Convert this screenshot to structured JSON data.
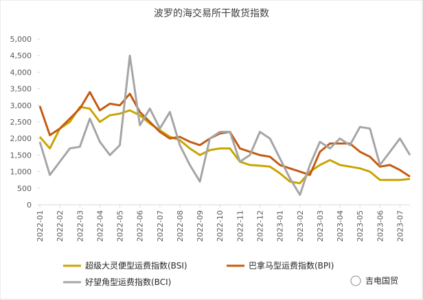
{
  "chart_data": {
    "type": "line",
    "title": "波罗的海交易所干散货指数",
    "categories": [
      "2022-01",
      null,
      "2022-02",
      null,
      "2022-03",
      null,
      "2022-04",
      null,
      "2022-05",
      null,
      "2022-06",
      null,
      "2022-07",
      null,
      "2022-08",
      null,
      "2022-09",
      null,
      "2022-10",
      null,
      "2022-11",
      null,
      "2022-12",
      null,
      "2023-01",
      null,
      "2023-02",
      null,
      "2023-03",
      null,
      "2023-04",
      null,
      "2023-05",
      null,
      "2023-06",
      null,
      "2023-07",
      null
    ],
    "series": [
      {
        "name": "超级大灵便型运费指数(BSI)",
        "color": "#c9a400",
        "values": [
          2050,
          1700,
          2300,
          2500,
          2950,
          2900,
          2500,
          2700,
          2750,
          2850,
          2700,
          2450,
          2250,
          2050,
          1950,
          1700,
          1500,
          1650,
          1700,
          1700,
          1300,
          1200,
          1180,
          1150,
          950,
          700,
          650,
          1000,
          1200,
          1350,
          1200,
          1150,
          1100,
          1000,
          750,
          750,
          750,
          780
        ]
      },
      {
        "name": "巴拿马型运费指数(BPI)",
        "color": "#c55a11",
        "values": [
          2980,
          2100,
          2300,
          2600,
          2900,
          3400,
          2850,
          3050,
          3000,
          3350,
          2800,
          2500,
          2200,
          2000,
          2050,
          1900,
          1800,
          2000,
          2150,
          2200,
          1700,
          1600,
          1500,
          1450,
          1200,
          1100,
          1000,
          900,
          1600,
          1850,
          1850,
          1850,
          1600,
          1450,
          1150,
          1200,
          1050,
          850
        ]
      },
      {
        "name": "好望角型运费指数(BCI)",
        "color": "#a5a5a5",
        "values": [
          1900,
          900,
          1300,
          1700,
          1750,
          2600,
          1900,
          1500,
          1800,
          4500,
          2400,
          2900,
          2300,
          2800,
          1800,
          1200,
          700,
          2000,
          2200,
          2200,
          1300,
          1500,
          2200,
          2000,
          1400,
          800,
          300,
          1200,
          1900,
          1700,
          2000,
          1800,
          2350,
          2300,
          1200,
          1600,
          2000,
          1500
        ]
      }
    ],
    "ylim": [
      0,
      5000
    ],
    "yticks": [
      0,
      500,
      {
        "value": 1000,
        "label": "1,000"
      },
      {
        "value": 1500,
        "label": "1,500"
      },
      {
        "value": 2000,
        "label": "2,000"
      },
      {
        "value": 2500,
        "label": "2,500"
      },
      {
        "value": 3000,
        "label": "3,000"
      },
      {
        "value": 3500,
        "label": "3,500"
      },
      {
        "value": 4000,
        "label": "4,000"
      },
      {
        "value": 4500,
        "label": "4,500"
      },
      {
        "value": 5000,
        "label": "5,000"
      }
    ],
    "grid": false,
    "legend": "bottom",
    "watermark": "吉电国贸"
  }
}
